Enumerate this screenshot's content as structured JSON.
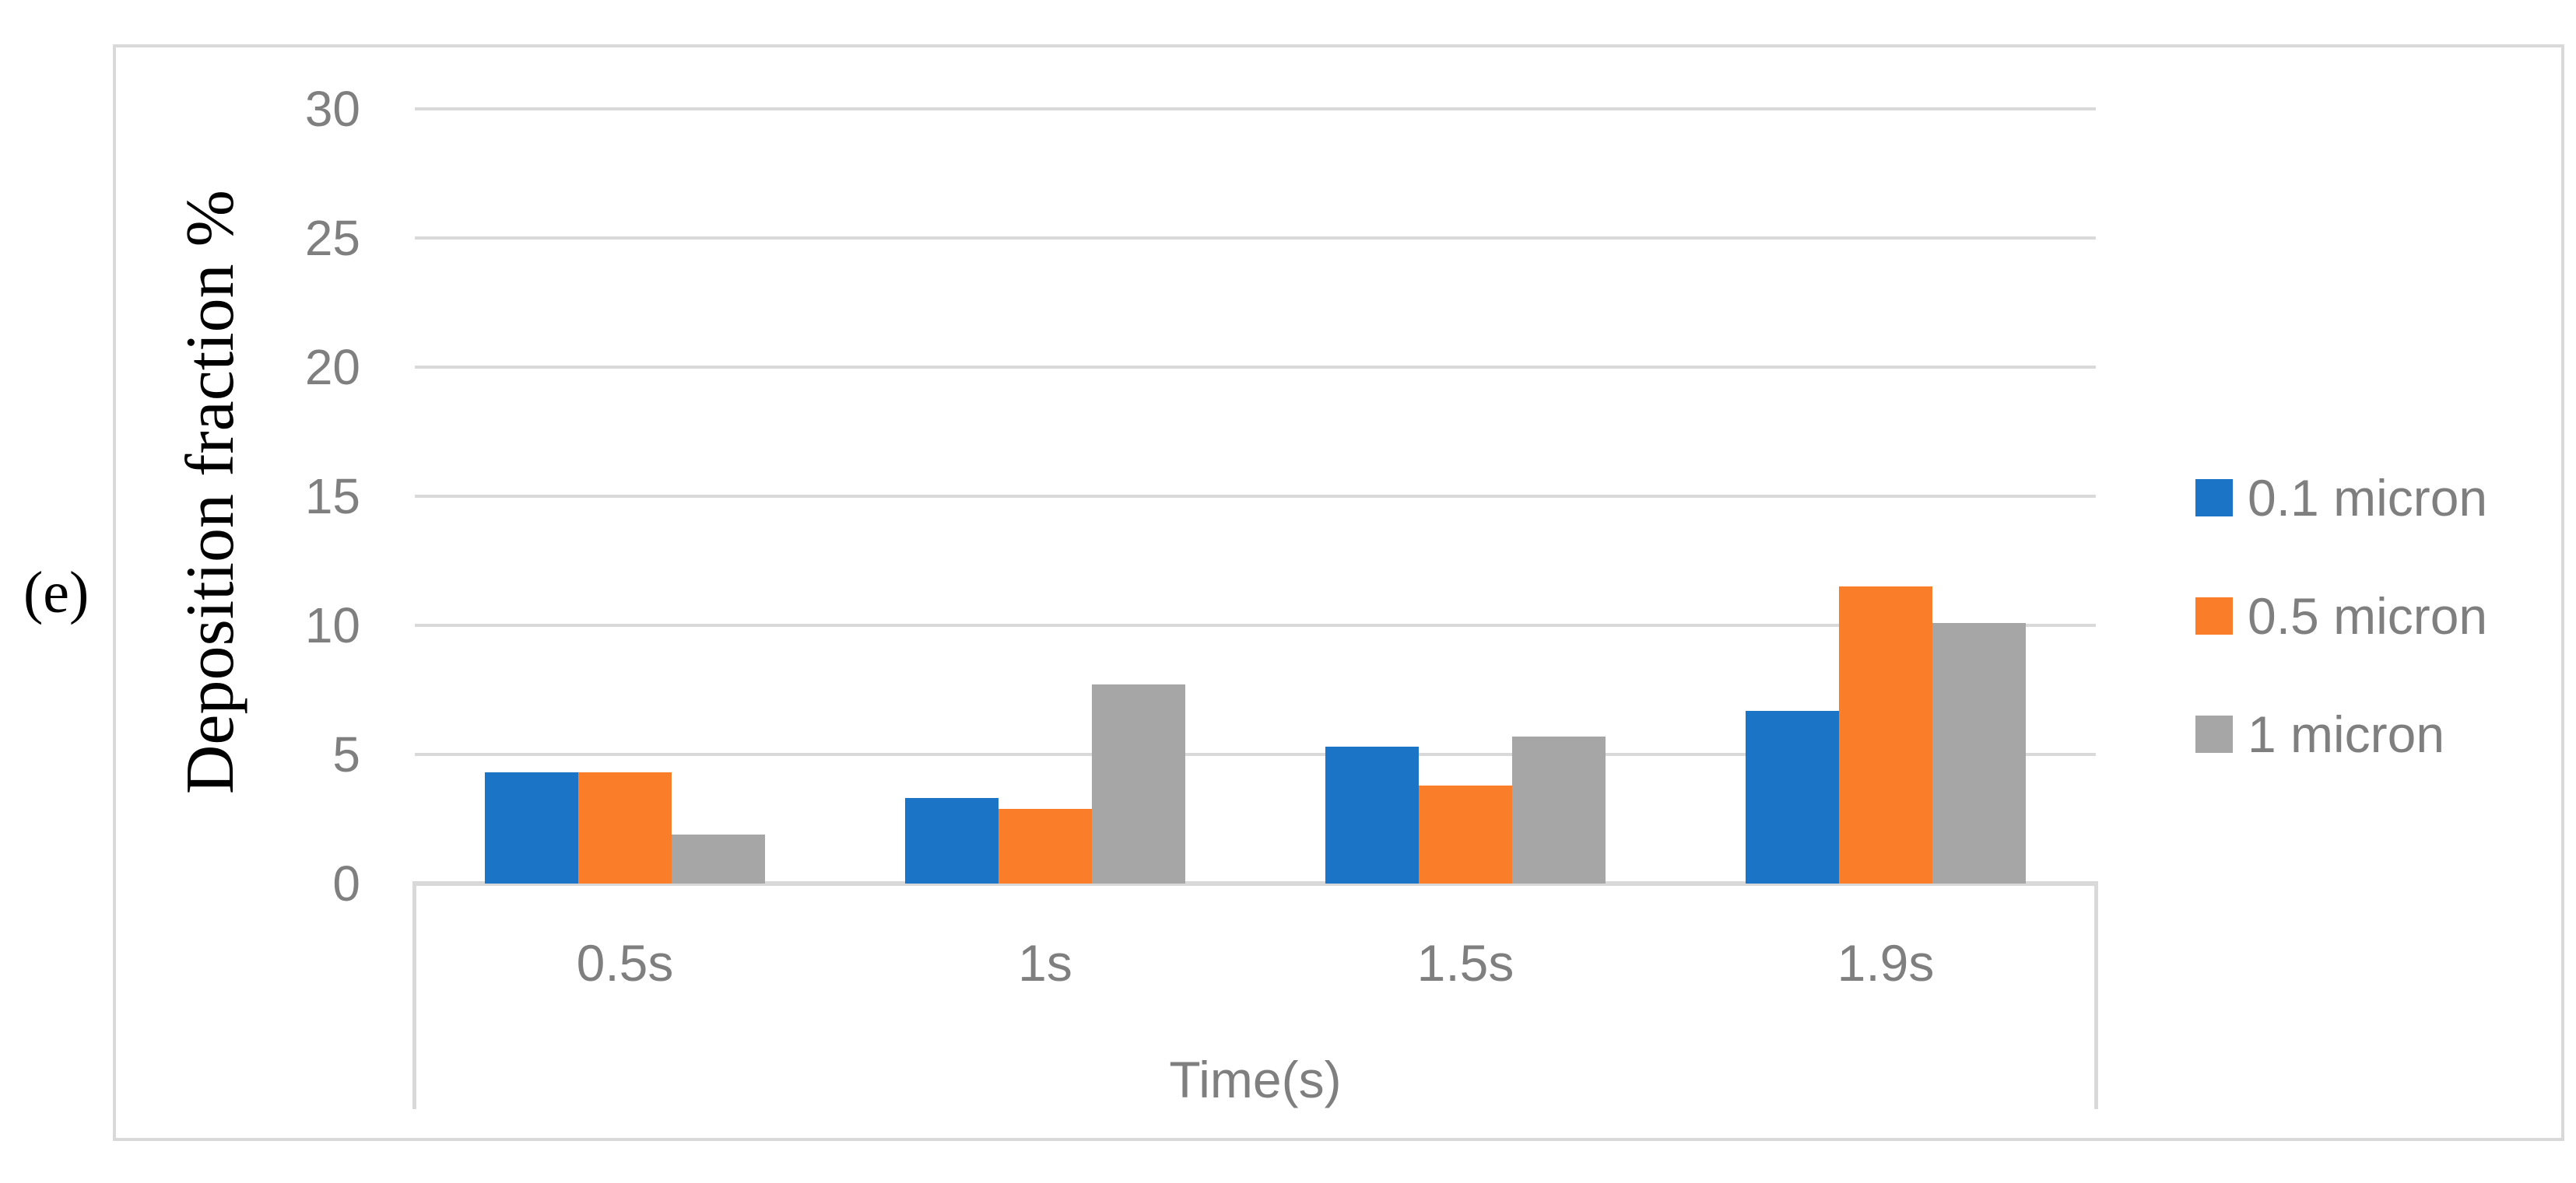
{
  "figure_label": "(e)",
  "chart_data": {
    "type": "bar",
    "title": "",
    "xlabel": "Time(s)",
    "ylabel": "Deposition fraction %",
    "categories": [
      "0.5s",
      "1s",
      "1.5s",
      "1.9s"
    ],
    "series": [
      {
        "name": "0.1 micron",
        "color": "#1B74C5",
        "values": [
          4.3,
          3.3,
          5.3,
          6.7
        ]
      },
      {
        "name": "0.5 micron",
        "color": "#FA7D2A",
        "values": [
          4.3,
          2.9,
          3.8,
          11.5
        ]
      },
      {
        "name": "1 micron",
        "color": "#A6A6A6",
        "values": [
          1.9,
          7.7,
          5.7,
          10.1
        ]
      }
    ],
    "ylim": [
      0,
      30
    ],
    "yticks": [
      0,
      5,
      10,
      15,
      20,
      25,
      30
    ],
    "grid": true,
    "legend_position": "right",
    "colors": {
      "gridline": "#D9D9D9",
      "chart_border": "#D9D9D9",
      "tick_text": "#7F7F7F",
      "axis_title_text": "#000000"
    }
  }
}
